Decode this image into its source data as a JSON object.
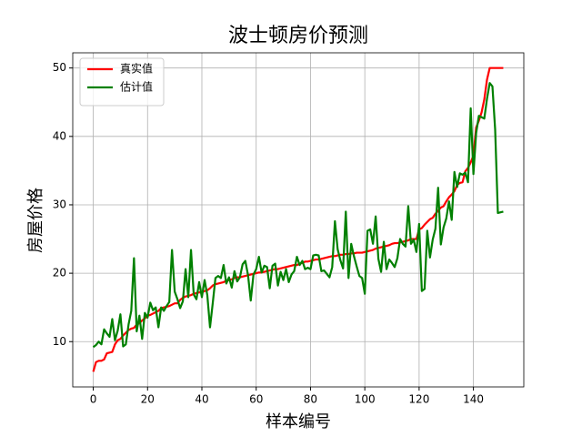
{
  "chart_data": {
    "type": "line",
    "title": "波士顿房价预测",
    "xlabel": "样本编号",
    "ylabel": "房屋价格",
    "x": [
      0,
      1,
      2,
      3,
      4,
      5,
      6,
      7,
      8,
      9,
      10,
      11,
      12,
      13,
      14,
      15,
      16,
      17,
      18,
      19,
      20,
      21,
      22,
      23,
      24,
      25,
      26,
      27,
      28,
      29,
      30,
      31,
      32,
      33,
      34,
      35,
      36,
      37,
      38,
      39,
      40,
      41,
      42,
      43,
      44,
      45,
      46,
      47,
      48,
      49,
      50,
      51,
      52,
      53,
      54,
      55,
      56,
      57,
      58,
      59,
      60,
      61,
      62,
      63,
      64,
      65,
      66,
      67,
      68,
      69,
      70,
      71,
      72,
      73,
      74,
      75,
      76,
      77,
      78,
      79,
      80,
      81,
      82,
      83,
      84,
      85,
      86,
      87,
      88,
      89,
      90,
      91,
      92,
      93,
      94,
      95,
      96,
      97,
      98,
      99,
      100,
      101,
      102,
      103,
      104,
      105,
      106,
      107,
      108,
      109,
      110,
      111,
      112,
      113,
      114,
      115,
      116,
      117,
      118,
      119,
      120,
      121,
      122,
      123,
      124,
      125,
      126,
      127,
      128,
      129,
      130,
      131,
      132,
      133,
      134,
      135,
      136,
      137,
      138,
      139,
      140,
      141,
      142,
      143,
      144,
      145,
      146,
      147,
      148,
      149,
      150,
      151
    ],
    "series": [
      {
        "name": "真实值",
        "color": "#ff0000",
        "values": [
          5.6,
          7.0,
          7.2,
          7.2,
          7.4,
          8.3,
          8.4,
          8.5,
          9.6,
          10.2,
          10.4,
          10.9,
          11.3,
          11.7,
          11.9,
          12.0,
          12.5,
          12.7,
          13.1,
          13.4,
          13.8,
          13.9,
          14.1,
          14.3,
          14.5,
          14.9,
          15.0,
          15.1,
          15.2,
          15.4,
          15.6,
          15.6,
          16.1,
          16.4,
          16.6,
          16.7,
          16.8,
          17.0,
          17.1,
          17.2,
          17.2,
          17.4,
          17.5,
          17.8,
          18.2,
          18.4,
          18.5,
          18.6,
          18.7,
          18.9,
          19.0,
          19.1,
          19.3,
          19.4,
          19.4,
          19.5,
          19.6,
          19.7,
          19.8,
          19.9,
          20.0,
          20.1,
          20.1,
          20.2,
          20.3,
          20.4,
          20.5,
          20.6,
          20.6,
          20.7,
          20.8,
          20.9,
          21.0,
          21.1,
          21.2,
          21.2,
          21.4,
          21.5,
          21.7,
          21.7,
          21.8,
          21.9,
          22.0,
          22.0,
          22.1,
          22.2,
          22.3,
          22.4,
          22.5,
          22.5,
          22.6,
          22.7,
          22.7,
          22.8,
          22.8,
          22.9,
          22.9,
          23.0,
          23.0,
          23.0,
          23.1,
          23.2,
          23.3,
          23.4,
          23.6,
          23.7,
          23.8,
          23.9,
          24.0,
          24.1,
          24.3,
          24.4,
          24.4,
          24.5,
          24.6,
          24.7,
          24.8,
          25.0,
          25.0,
          25.0,
          26.4,
          26.6,
          27.1,
          27.5,
          27.9,
          28.1,
          28.7,
          29.1,
          29.6,
          29.8,
          30.5,
          31.1,
          31.5,
          32.0,
          32.9,
          33.2,
          33.3,
          34.9,
          35.4,
          36.2,
          37.2,
          41.3,
          42.3,
          43.5,
          45.4,
          48.3,
          50.0,
          50.0,
          50.0,
          50.0,
          50.0,
          50.0
        ]
      },
      {
        "name": "估计值",
        "color": "#008000",
        "values": [
          9.2,
          9.5,
          10.0,
          9.6,
          11.8,
          11.2,
          10.7,
          13.3,
          10.2,
          11.6,
          14.0,
          9.3,
          9.6,
          12.5,
          14.5,
          22.2,
          11.5,
          13.8,
          10.4,
          14.2,
          13.5,
          15.7,
          14.6,
          15.0,
          12.1,
          15.0,
          14.5,
          15.2,
          15.8,
          23.4,
          17.3,
          16.2,
          14.9,
          15.9,
          20.6,
          16.5,
          23.4,
          16.9,
          16.2,
          18.7,
          16.5,
          19.0,
          16.8,
          12.1,
          15.6,
          19.3,
          19.6,
          19.3,
          21.2,
          18.5,
          19.4,
          17.9,
          20.3,
          18.8,
          19.4,
          21.3,
          21.8,
          19.7,
          16.0,
          19.8,
          20.6,
          22.4,
          20.1,
          21.1,
          20.9,
          17.8,
          21.1,
          21.4,
          18.2,
          20.2,
          19.0,
          20.6,
          18.7,
          19.8,
          20.3,
          22.4,
          21.2,
          21.8,
          20.6,
          20.8,
          20.6,
          22.6,
          22.7,
          22.6,
          20.3,
          20.4,
          19.9,
          19.4,
          20.9,
          27.6,
          23.5,
          21.9,
          20.7,
          29.0,
          19.3,
          24.3,
          22.5,
          21.0,
          19.6,
          19.3,
          17.0,
          26.2,
          26.4,
          24.3,
          28.3,
          22.1,
          20.2,
          24.6,
          20.6,
          22.0,
          21.5,
          20.9,
          22.2,
          25.0,
          24.3,
          23.9,
          29.8,
          24.3,
          24.9,
          23.1,
          27.2,
          17.4,
          17.7,
          26.2,
          22.3,
          24.9,
          26.5,
          32.5,
          24.2,
          26.7,
          28.0,
          30.5,
          27.8,
          34.8,
          32.6,
          34.6,
          34.4,
          34.7,
          33.3,
          44.1,
          34.5,
          40.5,
          43.0,
          42.8,
          42.6,
          45.5,
          47.8,
          47.3,
          41.0,
          28.8,
          28.9,
          29.0
        ]
      }
    ],
    "xlim": [
      -7.55,
      158.55
    ],
    "ylim": [
      3.38,
      52.22
    ],
    "xticks": [
      0,
      20,
      40,
      60,
      80,
      100,
      120,
      140
    ],
    "yticks": [
      10,
      20,
      30,
      40,
      50
    ],
    "grid": true,
    "legend": "upper left"
  }
}
